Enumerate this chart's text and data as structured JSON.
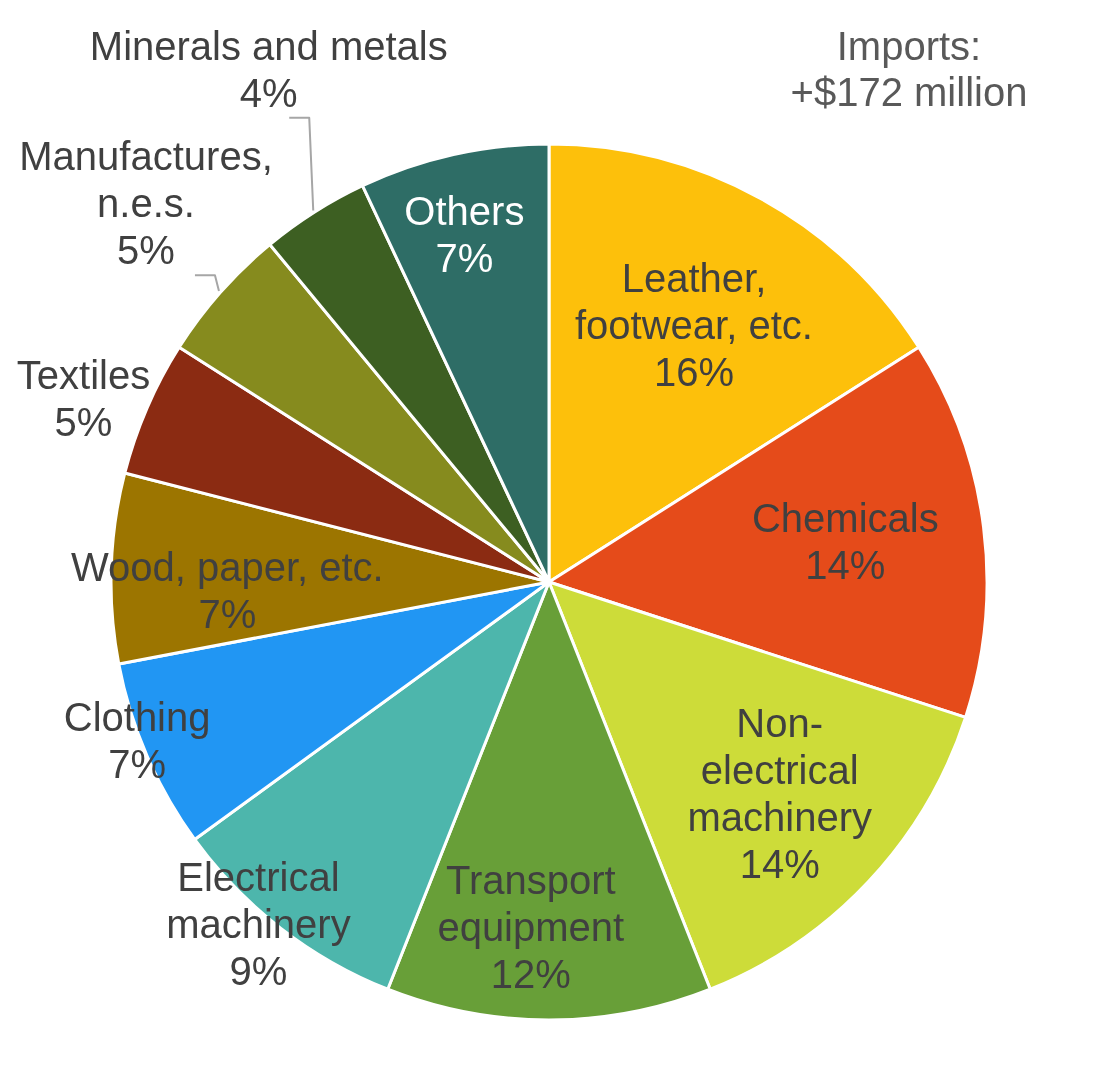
{
  "chart_data": {
    "type": "pie",
    "title": "Imports: +$172 million",
    "categories": [
      "Leather, footwear, etc.",
      "Chemicals",
      "Non-electrical machinery",
      "Transport equipment",
      "Electrical machinery",
      "Clothing",
      "Wood, paper, etc.",
      "Textiles",
      "Manufactures, n.e.s.",
      "Minerals and metals",
      "Others"
    ],
    "values": [
      16,
      14,
      14,
      12,
      9,
      7,
      7,
      5,
      5,
      4,
      7
    ],
    "colors": [
      "#fdc00b",
      "#e54b1a",
      "#cddc39",
      "#689f38",
      "#4db6ac",
      "#2196f3",
      "#9c7500",
      "#8b2b12",
      "#868b1e",
      "#3d5f22",
      "#2e6d66"
    ],
    "value_labels": [
      "16%",
      "14%",
      "14%",
      "12%",
      "9%",
      "7%",
      "7%",
      "5%",
      "5%",
      "4%",
      "7%"
    ]
  }
}
